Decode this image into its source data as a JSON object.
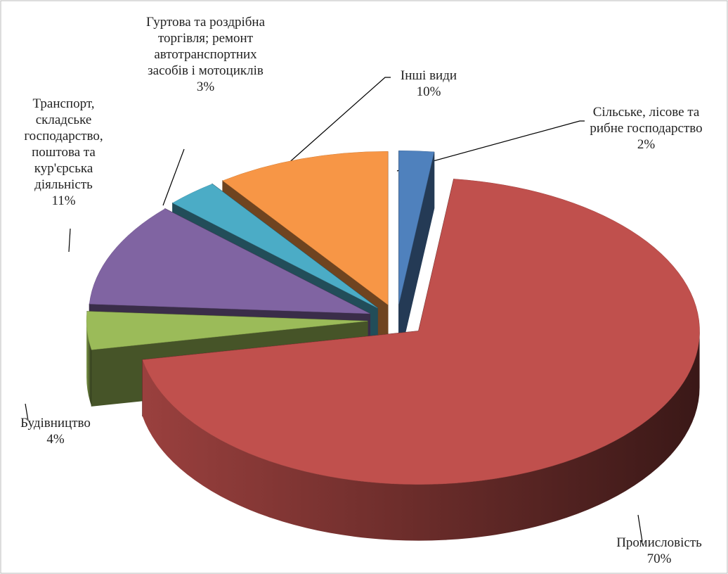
{
  "chart_data": {
    "type": "pie3d",
    "categories": [
      "Сільське, лісове та рибне господарство",
      "Промисловість",
      "Будівництво",
      "Транспорт, складське господарство, поштова та кур'єрська діяльність",
      "Гуртова та роздрібна торгівля; ремонт автотранспортних засобів і мотоциклів",
      "Інші види"
    ],
    "values": [
      2,
      70,
      4,
      11,
      3,
      10
    ],
    "value_labels": [
      "2%",
      "70%",
      "4%",
      "11%",
      "3%",
      "10%"
    ],
    "colors": [
      "#4f81bd",
      "#c0504d",
      "#9bbb59",
      "#8064a2",
      "#4bacc6",
      "#f79646"
    ]
  }
}
